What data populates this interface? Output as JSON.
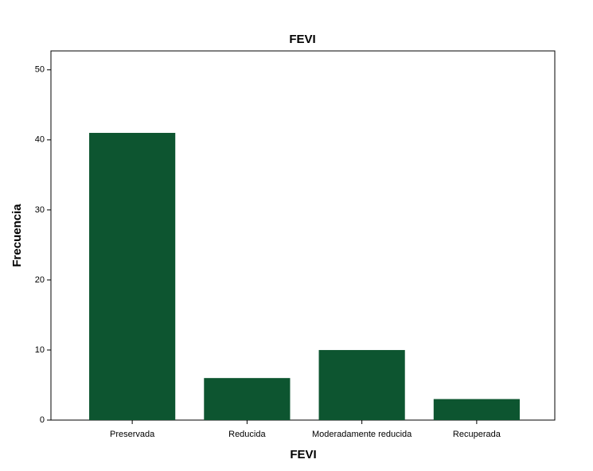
{
  "chart_data": {
    "type": "bar",
    "title": "FEVI",
    "x_label": "FEVI",
    "y_label": "Frecuencia",
    "categories": [
      "Preservada",
      "Reducida",
      "Moderadamente reducida",
      "Recuperada"
    ],
    "values": [
      41,
      6,
      10,
      3
    ],
    "color": "#0d5530",
    "ylim": [
      0,
      52.7
    ],
    "yticks": [
      0,
      10,
      20,
      30,
      40,
      50
    ],
    "grid": false
  }
}
